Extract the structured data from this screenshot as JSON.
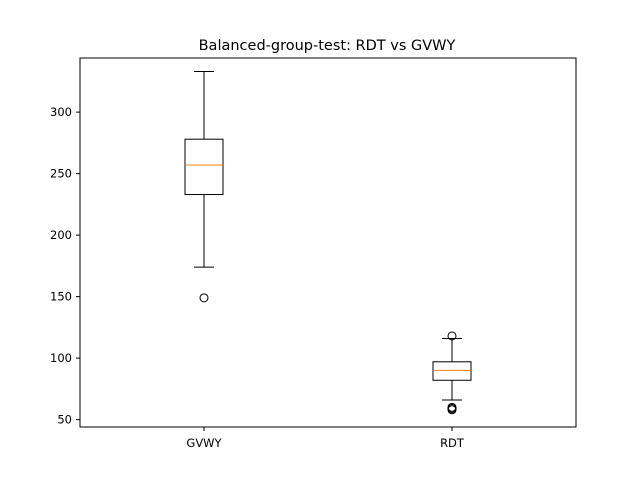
{
  "chart_data": {
    "type": "boxplot",
    "title": "Balanced-group-test: RDT vs GVWY",
    "xlabel": "",
    "ylabel": "",
    "ylim": [
      44,
      344
    ],
    "yticks": [
      50,
      100,
      150,
      200,
      250,
      300
    ],
    "grid": false,
    "median_color": "#ff7f0e",
    "box_color": "#000000",
    "categories": [
      "GVWY",
      "RDT"
    ],
    "boxes": [
      {
        "label": "GVWY",
        "whisker_low": 174,
        "q1": 233,
        "median": 257,
        "q3": 278,
        "whisker_high": 333,
        "outliers": [
          149
        ]
      },
      {
        "label": "RDT",
        "whisker_low": 66,
        "q1": 82,
        "median": 90,
        "q3": 97,
        "whisker_high": 116,
        "outliers": [
          58,
          59,
          60,
          118
        ]
      }
    ]
  }
}
